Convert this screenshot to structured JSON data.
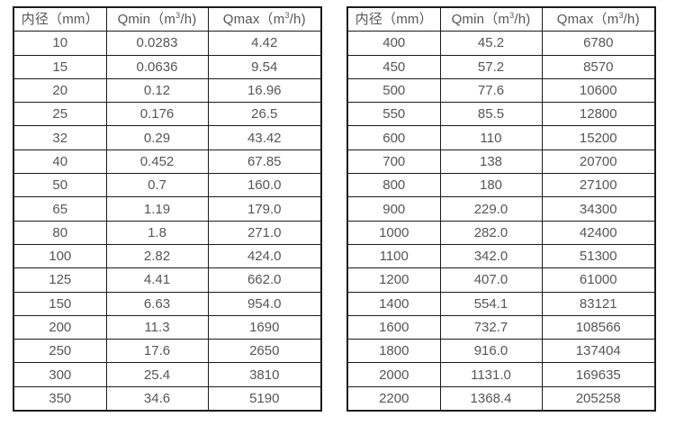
{
  "colors": {
    "background": "#ffffff",
    "border": "#1b1b1b",
    "text": "#565656"
  },
  "tables": [
    {
      "name": "flow-table-small-diameters",
      "headers": [
        {
          "label": "内径（mm）",
          "sup": null
        },
        {
          "label": "Qmin（m",
          "sup": "3",
          "label_after": "/h)"
        },
        {
          "label": "Qmax（m",
          "sup": "3",
          "label_after": "/h)"
        }
      ],
      "rows": [
        [
          "10",
          "0.0283",
          "4.42"
        ],
        [
          "15",
          "0.0636",
          "9.54"
        ],
        [
          "20",
          "0.12",
          "16.96"
        ],
        [
          "25",
          "0.176",
          "26.5"
        ],
        [
          "32",
          "0.29",
          "43.42"
        ],
        [
          "40",
          "0.452",
          "67.85"
        ],
        [
          "50",
          "0.7",
          "160.0"
        ],
        [
          "65",
          "1.19",
          "179.0"
        ],
        [
          "80",
          "1.8",
          "271.0"
        ],
        [
          "100",
          "2.82",
          "424.0"
        ],
        [
          "125",
          "4.41",
          "662.0"
        ],
        [
          "150",
          "6.63",
          "954.0"
        ],
        [
          "200",
          "11.3",
          "1690"
        ],
        [
          "250",
          "17.6",
          "2650"
        ],
        [
          "300",
          "25.4",
          "3810"
        ],
        [
          "350",
          "34.6",
          "5190"
        ]
      ]
    },
    {
      "name": "flow-table-large-diameters",
      "headers": [
        {
          "label": "内径（mm）",
          "sup": null
        },
        {
          "label": "Qmin（m",
          "sup": "3",
          "label_after": "/h)"
        },
        {
          "label": "Qmax（m",
          "sup": "3",
          "label_after": "/h)"
        }
      ],
      "rows": [
        [
          "400",
          "45.2",
          "6780"
        ],
        [
          "450",
          "57.2",
          "8570"
        ],
        [
          "500",
          "77.6",
          "10600"
        ],
        [
          "550",
          "85.5",
          "12800"
        ],
        [
          "600",
          "110",
          "15200"
        ],
        [
          "700",
          "138",
          "20700"
        ],
        [
          "800",
          "180",
          "27100"
        ],
        [
          "900",
          "229.0",
          "34300"
        ],
        [
          "1000",
          "282.0",
          "42400"
        ],
        [
          "1100",
          "342.0",
          "51300"
        ],
        [
          "1200",
          "407.0",
          "61000"
        ],
        [
          "1400",
          "554.1",
          "83121"
        ],
        [
          "1600",
          "732.7",
          "108566"
        ],
        [
          "1800",
          "916.0",
          "137404"
        ],
        [
          "2000",
          "1131.0",
          "169635"
        ],
        [
          "2200",
          "1368.4",
          "205258"
        ]
      ]
    }
  ]
}
